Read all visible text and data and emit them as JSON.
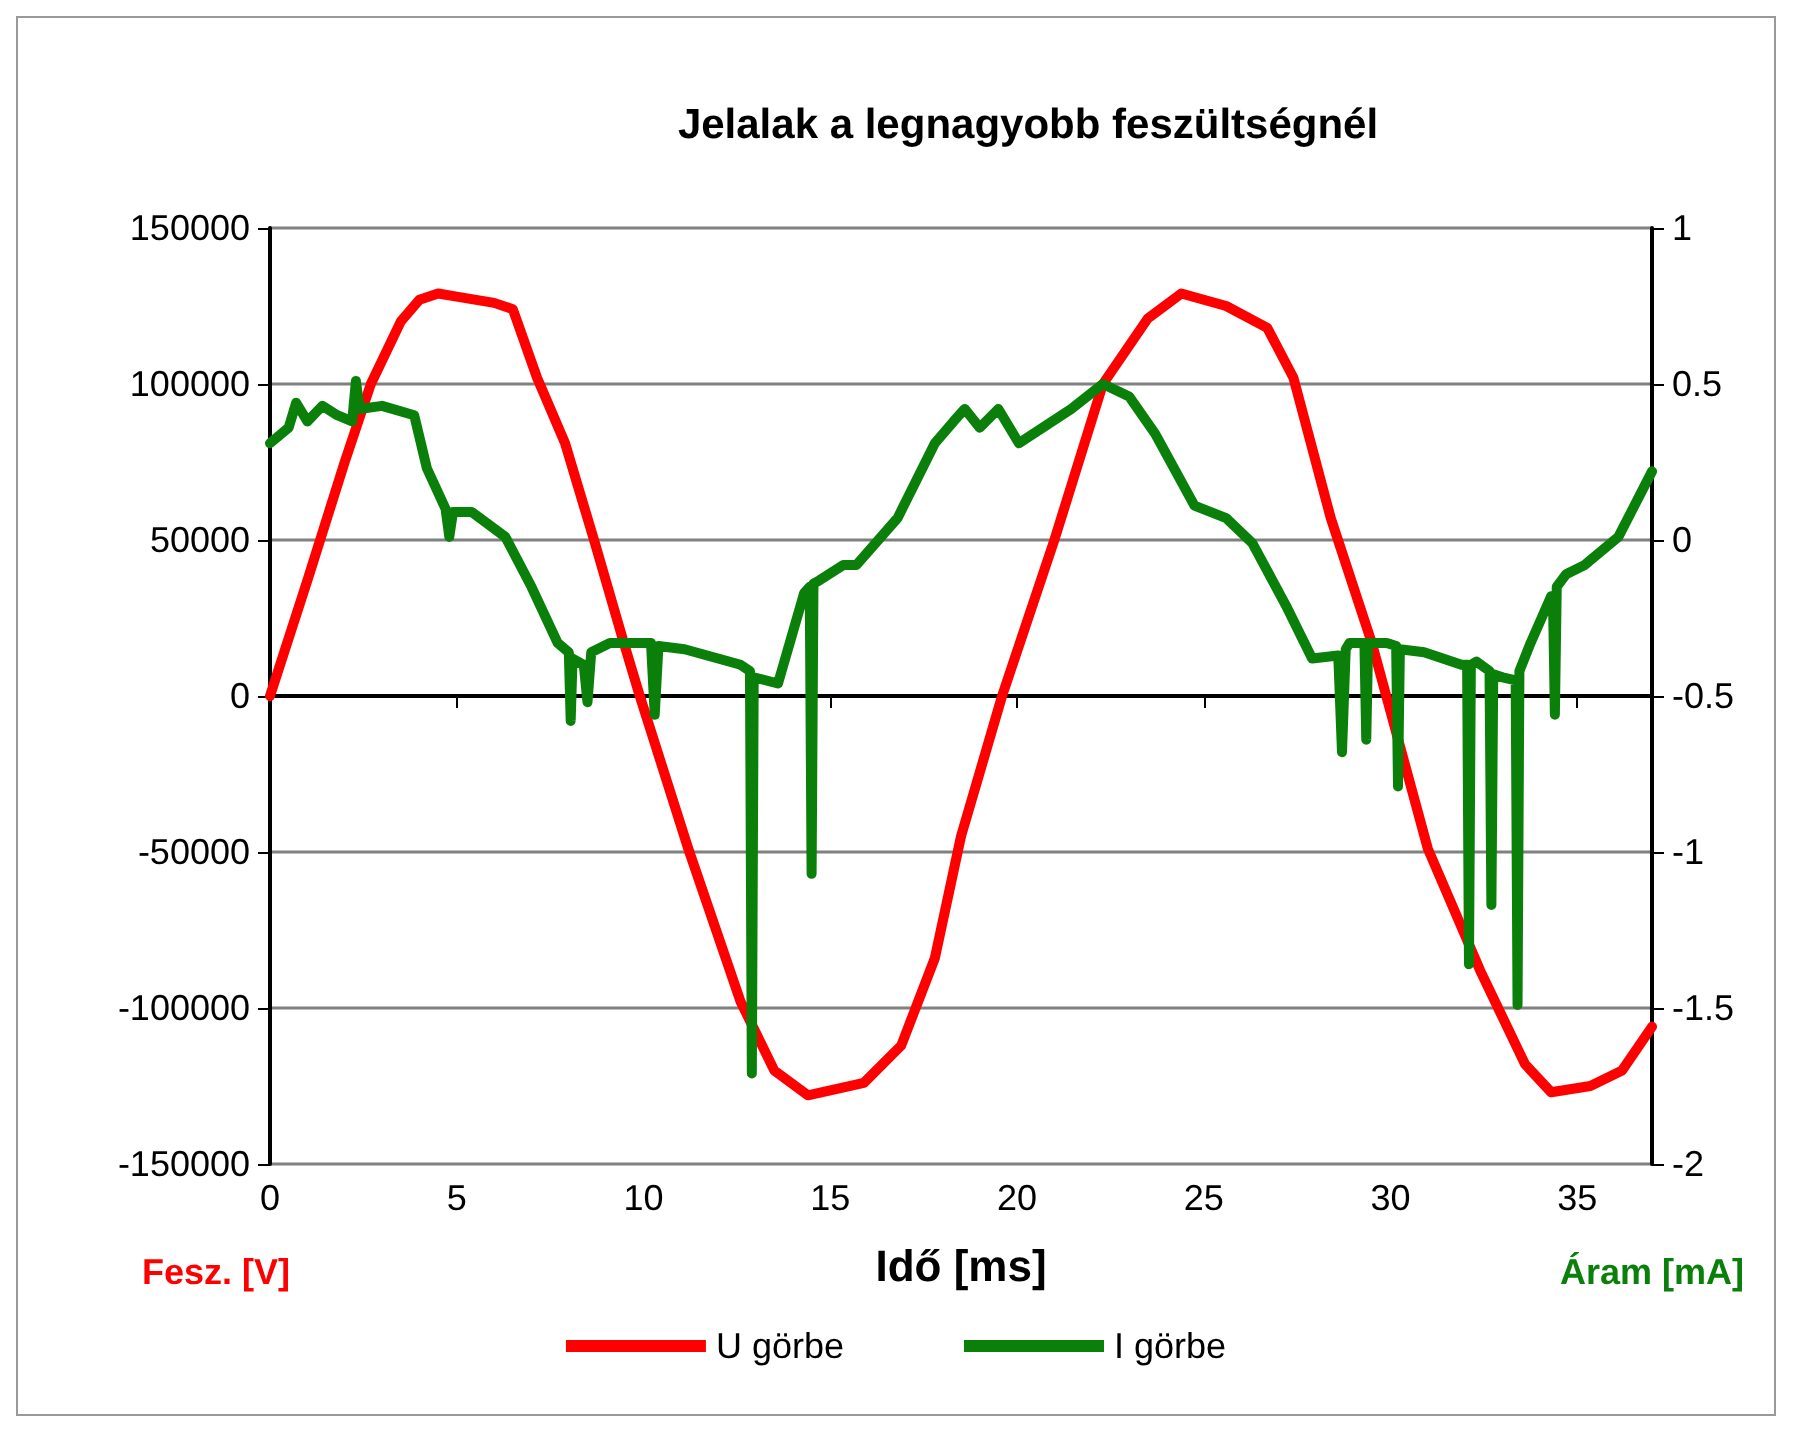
{
  "chart_data": {
    "type": "line",
    "title": "Jelalak a legnagyobb feszültségnél",
    "xlabel": "Idő [ms]",
    "ylabel": "Fesz. [V]",
    "y2label": "Áram [mA]",
    "xlim": [
      0,
      37
    ],
    "xticks": [
      0,
      5,
      10,
      15,
      20,
      25,
      30,
      35
    ],
    "ylim": [
      -150000,
      150000
    ],
    "yticks": [
      -150000,
      -100000,
      -50000,
      0,
      50000,
      100000,
      150000
    ],
    "y2lim": [
      -2,
      1
    ],
    "y2ticks": [
      -2,
      -1.5,
      -1,
      -0.5,
      0,
      0.5,
      1
    ],
    "grid": "y",
    "legend": "bottom",
    "marker": "none",
    "line_style": "solid",
    "series": [
      {
        "name": "U görbe",
        "color": "#ff0000",
        "x": [
          0,
          1,
          2,
          2.7,
          3.5,
          4,
          4.5,
          5,
          6,
          6.5,
          7.15,
          7.9,
          8.7,
          9.45,
          9.9,
          11.2,
          12.6,
          13.5,
          14.4,
          15.9,
          16.9,
          17.8,
          18.5,
          19.6,
          21,
          22.3,
          23.5,
          24.4,
          25.6,
          26.7,
          27.4,
          28.4,
          29.5,
          31,
          32.4,
          33.6,
          34.3,
          35.35,
          36.2,
          37
        ],
        "values": [
          0,
          37000,
          75000,
          100000,
          120000,
          127000,
          129000,
          128000,
          126000,
          124000,
          102000,
          81000,
          49000,
          18000,
          0,
          -49000,
          -98000,
          -120000,
          -128000,
          -124000,
          -112000,
          -84000,
          -45000,
          0,
          50000,
          100000,
          121000,
          129000,
          125000,
          118000,
          102000,
          57000,
          17000,
          -49000,
          -88000,
          -118000,
          -127000,
          -125000,
          -120000,
          -106000
        ]
      },
      {
        "name": "I görbe",
        "color": "#0a800a",
        "axis": "y2",
        "x": [
          0,
          0.5,
          0.7,
          1,
          1.4,
          1.8,
          2.2,
          2.3,
          2.4,
          3,
          3.86,
          4.2,
          4.7,
          4.8,
          4.9,
          5.4,
          6.3,
          7,
          7.7,
          8,
          8.05,
          8.1,
          8.4,
          8.5,
          8.6,
          9.1,
          10.2,
          10.3,
          10.4,
          11.1,
          12.6,
          12.85,
          12.9,
          12.95,
          13.6,
          14.3,
          14.45,
          14.5,
          14.55,
          14.7,
          15.35,
          15.7,
          16.8,
          17.8,
          18.3,
          18.6,
          19,
          19.5,
          20.05,
          21.45,
          22.3,
          23,
          23.7,
          24.75,
          25.6,
          26.3,
          27.2,
          27.9,
          28.6,
          28.7,
          28.8,
          28.9,
          29.3,
          29.35,
          29.4,
          29.9,
          30.15,
          30.2,
          30.25,
          30.9,
          31.9,
          32.05,
          32.1,
          32.15,
          32.3,
          32.65,
          32.7,
          32.75,
          33,
          33.35,
          33.4,
          33.45,
          33.75,
          34.3,
          34.35,
          34.4,
          34.45,
          34.7,
          35.2,
          36.1,
          37
        ],
        "values": [
          0.31,
          0.36,
          0.44,
          0.38,
          0.43,
          0.4,
          0.38,
          0.51,
          0.42,
          0.43,
          0.4,
          0.23,
          0.1,
          0.01,
          0.09,
          0.09,
          0.01,
          -0.15,
          -0.33,
          -0.36,
          -0.58,
          -0.38,
          -0.4,
          -0.52,
          -0.36,
          -0.33,
          -0.33,
          -0.56,
          -0.34,
          -0.35,
          -0.4,
          -0.42,
          -1.71,
          -0.44,
          -0.46,
          -0.17,
          -0.15,
          -1.07,
          -0.14,
          -0.13,
          -0.08,
          -0.08,
          0.07,
          0.31,
          0.38,
          0.42,
          0.36,
          0.42,
          0.31,
          0.42,
          0.5,
          0.46,
          0.34,
          0.11,
          0.07,
          -0.01,
          -0.21,
          -0.38,
          -0.37,
          -0.68,
          -0.35,
          -0.33,
          -0.33,
          -0.64,
          -0.33,
          -0.33,
          -0.34,
          -0.79,
          -0.35,
          -0.36,
          -0.4,
          -0.4,
          -1.36,
          -0.4,
          -0.39,
          -0.42,
          -1.17,
          -0.43,
          -0.44,
          -0.45,
          -1.49,
          -0.42,
          -0.33,
          -0.18,
          -0.2,
          -0.56,
          -0.15,
          -0.11,
          -0.08,
          0.01,
          0.22
        ]
      }
    ]
  }
}
